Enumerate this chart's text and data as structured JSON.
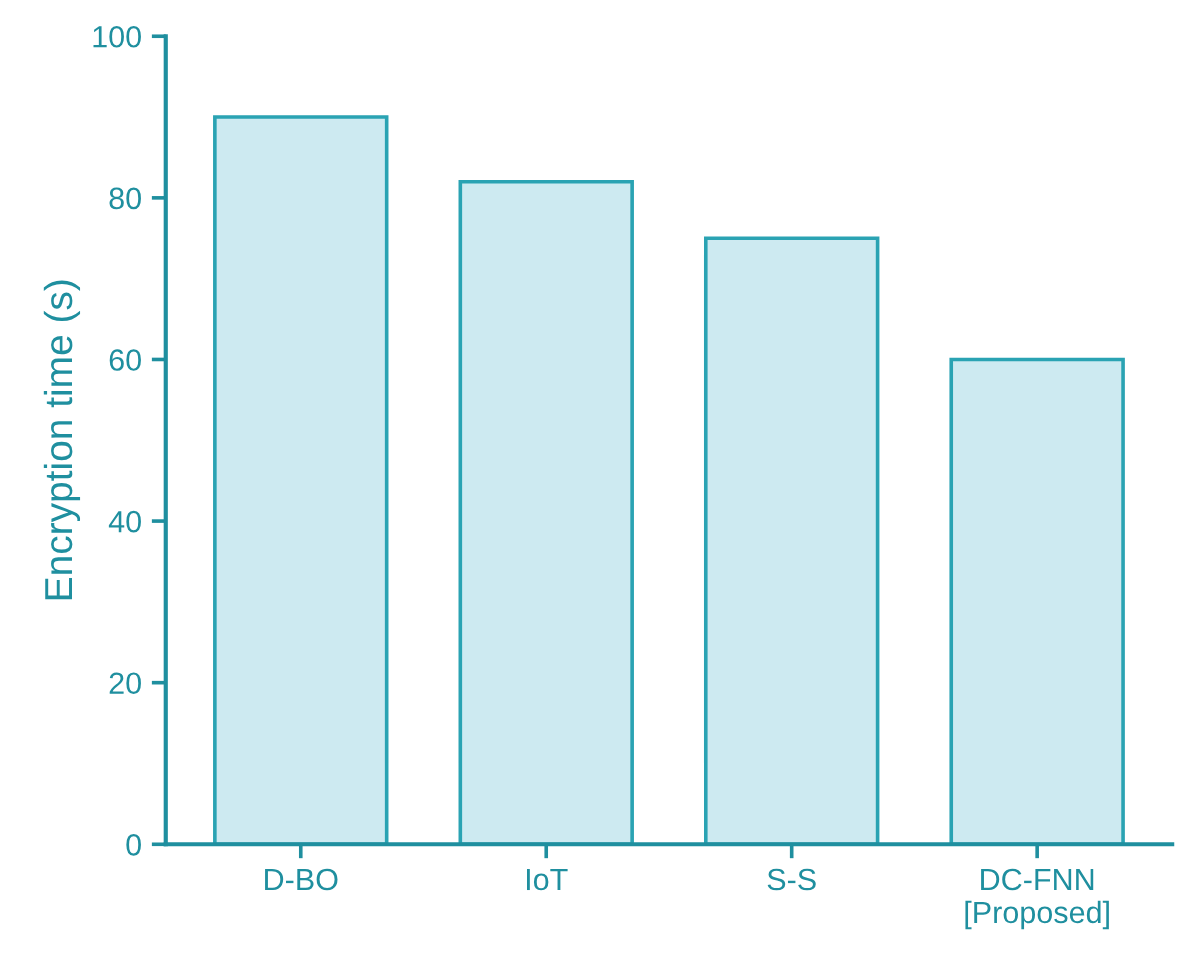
{
  "chart_data": {
    "type": "bar",
    "ylabel": "Encryption time (s)",
    "categories": [
      "D-BO",
      "IoT",
      "S-S",
      "DC-FNN\n[Proposed]"
    ],
    "values": [
      90,
      82,
      75,
      60
    ],
    "color": "#cdeaf1",
    "ylim": [
      0,
      100
    ],
    "yticks": [
      0,
      20,
      40,
      60,
      80,
      100
    ],
    "grid": false
  }
}
